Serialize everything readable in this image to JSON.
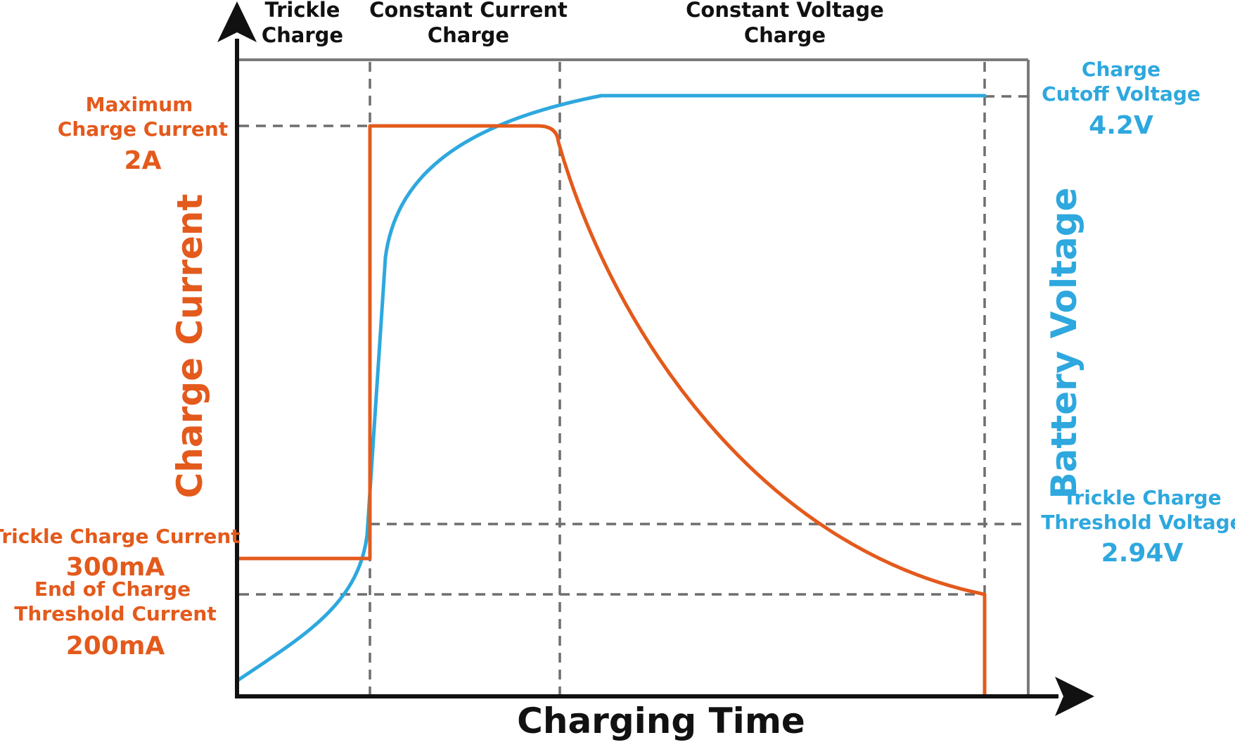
{
  "colors": {
    "current": "#e35a1c",
    "voltage": "#2ea8de",
    "axis": "#111111",
    "grid": "#6e6e6e",
    "frame": "#7a7a7a"
  },
  "phases": {
    "trickle": [
      "Trickle",
      "Charge"
    ],
    "constant_current": [
      "Constant Current",
      "Charge"
    ],
    "constant_voltage": [
      "Constant Voltage",
      "Charge"
    ]
  },
  "current_labels": {
    "max": {
      "lines": [
        "Maximum",
        "Charge Current"
      ],
      "value": "2A"
    },
    "trickle": {
      "lines": [
        "Trickle Charge Current"
      ],
      "value": "300mA"
    },
    "end": {
      "lines": [
        "End of Charge",
        "Threshold Current"
      ],
      "value": "200mA"
    }
  },
  "voltage_labels": {
    "cutoff": {
      "lines": [
        "Charge",
        "Cutoff Voltage"
      ],
      "value": "4.2V"
    },
    "threshold": {
      "lines": [
        "Trickle Charge",
        "Threshold Voltage"
      ],
      "value": "2.94V"
    }
  },
  "axes": {
    "left_title": "Charge Current",
    "right_title": "Battery Voltage",
    "x_title": "Charging Time"
  },
  "icons": {
    "y_arrow": "arrow-up-icon",
    "x_arrow": "arrow-right-icon"
  }
}
